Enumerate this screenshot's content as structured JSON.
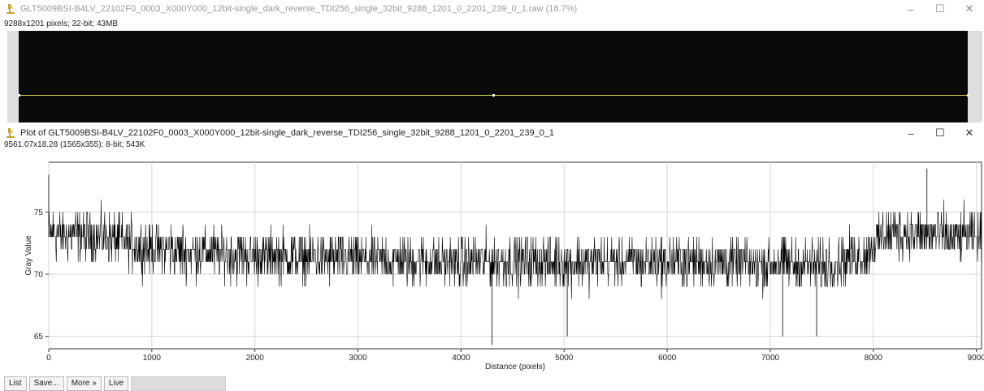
{
  "image_window": {
    "title": "GLT5009BSI-B4LV_22102F0_0003_X000Y000_12bit-single_dark_reverse_TDI256_single_32bit_9288_1201_0_2201_239_0_1.raw (16.7%)",
    "info": "9288x1201 pixels; 32-bit; 43MB",
    "controls": {
      "minimize": "–",
      "maximize": "☐",
      "close": "✕"
    }
  },
  "plot_window": {
    "title": "Plot of GLT5009BSI-B4LV_22102F0_0003_X000Y000_12bit-single_dark_reverse_TDI256_single_32bit_9288_1201_0_2201_239_0_1",
    "info": "9561.07x18.28  (1565x355); 8-bit; 543K",
    "controls": {
      "minimize": "–",
      "maximize": "☐",
      "close": "✕"
    }
  },
  "toolbar": {
    "list_label": "List",
    "save_label": "Save...",
    "more_label": "More »",
    "live_label": "Live"
  },
  "chart_data": {
    "type": "line",
    "xlabel": "Distance (pixels)",
    "ylabel": "Gray Value",
    "xlim": [
      0,
      9050
    ],
    "ylim": [
      64,
      79
    ],
    "xticks": [
      0,
      1000,
      2000,
      3000,
      4000,
      5000,
      6000,
      7000,
      8000,
      9000
    ],
    "yticks": [
      65,
      70,
      75
    ],
    "grid": true,
    "series": [
      {
        "color": "#000000",
        "baseline_profile": {
          "x": [
            0,
            500,
            1000,
            2000,
            3000,
            4000,
            5000,
            6000,
            7000,
            7500,
            7900,
            8100,
            9000,
            9050
          ],
          "y": [
            73.3,
            73.0,
            72.0,
            71.5,
            71.2,
            71.0,
            71.0,
            71.0,
            70.8,
            70.8,
            71.5,
            73.3,
            73.0,
            73.0
          ]
        },
        "noise_range": [
          -3,
          3
        ],
        "notable_extremes": [
          {
            "x": 0,
            "y": 78
          },
          {
            "x": 4300,
            "y": 64.3
          },
          {
            "x": 5030,
            "y": 65
          },
          {
            "x": 7120,
            "y": 65
          },
          {
            "x": 7450,
            "y": 65
          },
          {
            "x": 8520,
            "y": 78.5
          }
        ]
      }
    ]
  }
}
